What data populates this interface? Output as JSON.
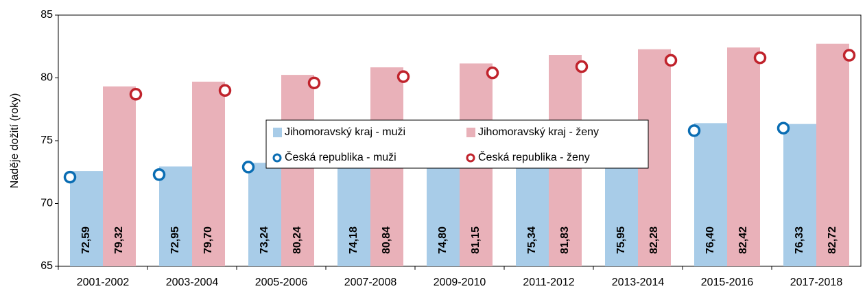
{
  "chart_data": {
    "type": "bar",
    "y_label": "Naděje dožití (roky)",
    "categories": [
      "2001-2002",
      "2003-2004",
      "2005-2006",
      "2007-2008",
      "2009-2010",
      "2011-2012",
      "2013-2014",
      "2015-2016",
      "2017-2018"
    ],
    "series": [
      {
        "name": "Jihomoravský kraj  - muži",
        "color": "#a8cce8",
        "style": "bar",
        "values": [
          72.59,
          72.95,
          73.24,
          74.18,
          74.8,
          75.34,
          75.95,
          76.4,
          76.33
        ],
        "value_labels": [
          "72,59",
          "72,95",
          "73,24",
          "74,18",
          "74,80",
          "75,34",
          "75,95",
          "76,40",
          "76,33"
        ]
      },
      {
        "name": "Jihomoravský kraj - ženy",
        "color": "#e9b1b9",
        "style": "bar",
        "values": [
          79.32,
          79.7,
          80.24,
          80.84,
          81.15,
          81.83,
          82.28,
          82.42,
          82.72
        ],
        "value_labels": [
          "79,32",
          "79,70",
          "80,24",
          "80,84",
          "81,15",
          "81,83",
          "82,28",
          "82,42",
          "82,72"
        ]
      },
      {
        "name": "Česká republika - muži",
        "color": "#0a6db3",
        "style": "marker",
        "values": [
          72.1,
          72.3,
          72.9,
          73.7,
          74.3,
          74.9,
          75.5,
          75.8,
          76.0
        ]
      },
      {
        "name": "Česká republika - ženy",
        "color": "#c0232c",
        "style": "marker",
        "values": [
          78.7,
          79.0,
          79.6,
          80.1,
          80.4,
          80.9,
          81.4,
          81.6,
          81.8
        ]
      }
    ],
    "ylim": [
      65,
      85
    ],
    "yticks": [
      65,
      70,
      75,
      80,
      85
    ],
    "grid": false
  }
}
